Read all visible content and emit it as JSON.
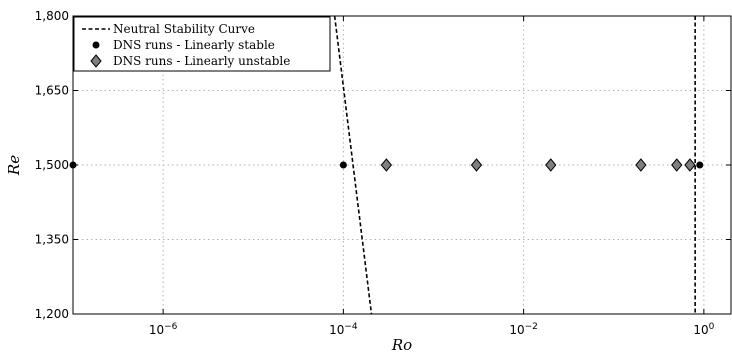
{
  "chart_data": {
    "type": "scatter",
    "title": "",
    "xlabel": "Ro",
    "ylabel": "Re",
    "x_scale": "log",
    "xlim": [
      1e-07,
      2
    ],
    "ylim": [
      1200,
      1800
    ],
    "grid": true,
    "x_ticks": [
      {
        "value": 1e-06,
        "base": "10",
        "exp": "−6"
      },
      {
        "value": 0.0001,
        "base": "10",
        "exp": "−4"
      },
      {
        "value": 0.01,
        "base": "10",
        "exp": "−2"
      },
      {
        "value": 1,
        "base": "10",
        "exp": "0"
      }
    ],
    "y_ticks": [
      {
        "value": 1200,
        "label": "1,200"
      },
      {
        "value": 1350,
        "label": "1,350"
      },
      {
        "value": 1500,
        "label": "1,500"
      },
      {
        "value": 1650,
        "label": "1,650"
      },
      {
        "value": 1800,
        "label": "1,800"
      }
    ],
    "legend_position": "top-left",
    "series": [
      {
        "name": "Neutral Stability Curve",
        "kind": "line",
        "style": "dashed",
        "color": "#000000",
        "segments": [
          [
            {
              "x": 8e-05,
              "y": 1800
            },
            {
              "x": 0.000205,
              "y": 1200
            }
          ],
          [
            {
              "x": 0.8,
              "y": 1800
            },
            {
              "x": 0.8,
              "y": 1200
            }
          ]
        ]
      },
      {
        "name": "DNS runs - Linearly stable",
        "kind": "marker",
        "marker": "circle",
        "color": "#000000",
        "points": [
          {
            "x": 1e-07,
            "y": 1500
          },
          {
            "x": 0.0001,
            "y": 1500
          },
          {
            "x": 0.9,
            "y": 1500
          }
        ]
      },
      {
        "name": "DNS runs - Linearly unstable",
        "kind": "marker",
        "marker": "diamond",
        "color": "#7f7f7f",
        "points": [
          {
            "x": 0.0003,
            "y": 1500
          },
          {
            "x": 0.003,
            "y": 1500
          },
          {
            "x": 0.02,
            "y": 1500
          },
          {
            "x": 0.2,
            "y": 1500
          },
          {
            "x": 0.5,
            "y": 1500
          },
          {
            "x": 0.7,
            "y": 1500
          }
        ]
      }
    ]
  }
}
